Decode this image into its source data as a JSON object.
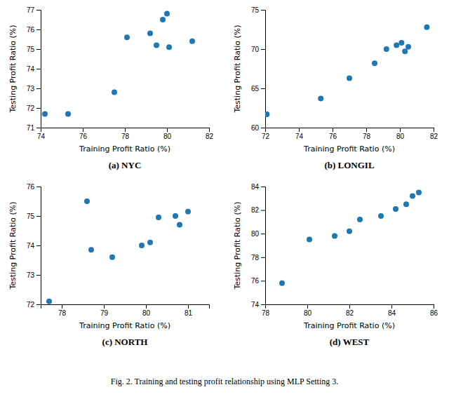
{
  "chart_data": [
    {
      "type": "scatter",
      "title": "(a)  NYC",
      "xlabel": "Training Profit Ratio (%)",
      "ylabel": "Testing Profit Ratio (%)",
      "x": [
        74.2,
        75.3,
        77.5,
        78.1,
        79.2,
        79.5,
        79.8,
        80.0,
        80.1,
        81.2
      ],
      "values": [
        71.7,
        71.7,
        72.8,
        75.6,
        75.8,
        75.2,
        76.5,
        76.8,
        75.1,
        75.4
      ],
      "color": "#1f77b4",
      "xlim": [
        74,
        82
      ],
      "ylim": [
        71,
        77
      ],
      "xticks": [
        74,
        76,
        78,
        80,
        82
      ],
      "yticks": [
        71,
        72,
        73,
        74,
        75,
        76,
        77
      ]
    },
    {
      "type": "scatter",
      "title": "(b)  LONGIL",
      "xlabel": "Training Profit Ratio (%)",
      "ylabel": "Testing Profit Ratio (%)",
      "x": [
        72.1,
        75.3,
        77.0,
        78.5,
        79.2,
        79.8,
        80.1,
        80.3,
        80.5,
        81.6
      ],
      "values": [
        61.7,
        63.7,
        66.3,
        68.2,
        70.0,
        70.5,
        70.8,
        69.7,
        70.3,
        72.8
      ],
      "color": "#1f77b4",
      "xlim": [
        72,
        82
      ],
      "ylim": [
        60,
        75
      ],
      "xticks": [
        72,
        74,
        76,
        78,
        80,
        82
      ],
      "yticks": [
        60,
        65,
        70,
        75
      ]
    },
    {
      "type": "scatter",
      "title": "(c)  NORTH",
      "xlabel": "Training Profit Ratio (%)",
      "ylabel": "Testing Profit Ratio (%)",
      "x": [
        77.7,
        78.6,
        78.7,
        79.2,
        79.9,
        80.1,
        80.3,
        80.7,
        80.8,
        81.0
      ],
      "values": [
        72.1,
        75.5,
        73.85,
        73.6,
        74.0,
        74.1,
        74.95,
        75.0,
        74.7,
        75.15
      ],
      "color": "#1f77b4",
      "xlim": [
        77.5,
        81.5
      ],
      "ylim": [
        72,
        76
      ],
      "xticks": [
        78,
        79,
        80,
        81
      ],
      "yticks": [
        72,
        73,
        74,
        75,
        76
      ]
    },
    {
      "type": "scatter",
      "title": "(d)  WEST",
      "xlabel": "Training Profit Ratio (%)",
      "ylabel": "Testing Profit Ratio (%)",
      "x": [
        78.8,
        80.1,
        81.3,
        82.0,
        82.5,
        83.5,
        84.2,
        84.7,
        85.0,
        85.3
      ],
      "values": [
        75.8,
        79.5,
        79.8,
        80.2,
        81.2,
        81.5,
        82.1,
        82.5,
        83.2,
        83.5
      ],
      "color": "#1f77b4",
      "xlim": [
        78,
        86
      ],
      "ylim": [
        74,
        84
      ],
      "xticks": [
        78,
        80,
        82,
        84,
        86
      ],
      "yticks": [
        74,
        76,
        78,
        80,
        82,
        84
      ]
    }
  ],
  "caption": "Fig. 2.   Training and testing profit relationship using MLP Setting 3."
}
